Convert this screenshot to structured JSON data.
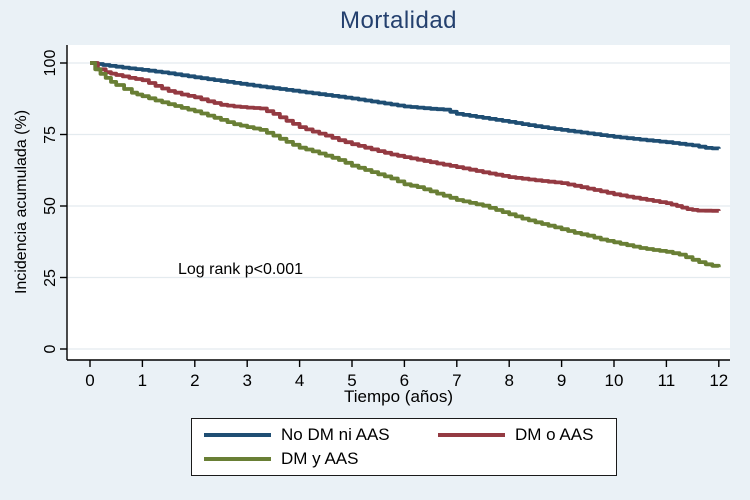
{
  "colors": {
    "background": "#eaf1f6",
    "plot_background": "#ffffff",
    "grid": "#e4ebef",
    "axis": "#000000",
    "title": "#24406e",
    "legend_border": "#1a1a1a",
    "series_blue": "#1f4e73",
    "series_red": "#943a42",
    "series_green": "#697f35"
  },
  "chart_data": {
    "type": "line",
    "subtype": "kaplan-meier-step",
    "title": "Mortalidad",
    "xlabel": "Tiempo (años)",
    "ylabel": "Incidencia acumulada (%)",
    "annotation": "Log rank p<0.001",
    "xlim": [
      0,
      12
    ],
    "ylim": [
      0,
      100
    ],
    "xticks": [
      0,
      1,
      2,
      3,
      4,
      5,
      6,
      7,
      8,
      9,
      10,
      11,
      12
    ],
    "yticks": [
      0,
      25,
      50,
      75,
      100
    ],
    "grid": true,
    "legend_position": "bottom",
    "series": [
      {
        "name": "No DM ni AAS",
        "color": "#1f4e73",
        "points": [
          [
            0,
            100
          ],
          [
            0.25,
            99.3
          ],
          [
            0.5,
            98.7
          ],
          [
            0.75,
            98.1
          ],
          [
            1,
            97.6
          ],
          [
            1.25,
            97
          ],
          [
            1.5,
            96.4
          ],
          [
            1.75,
            95.7
          ],
          [
            2,
            95
          ],
          [
            2.5,
            93.7
          ],
          [
            3,
            92.4
          ],
          [
            3.5,
            91.2
          ],
          [
            4,
            90
          ],
          [
            4.5,
            88.8
          ],
          [
            5,
            87.6
          ],
          [
            5.5,
            86.2
          ],
          [
            6,
            84.8
          ],
          [
            6.5,
            84
          ],
          [
            6.75,
            83.7
          ],
          [
            7,
            82.2
          ],
          [
            7.5,
            80.8
          ],
          [
            8,
            79.4
          ],
          [
            8.5,
            77.9
          ],
          [
            9,
            76.6
          ],
          [
            9.5,
            75.4
          ],
          [
            10,
            74.2
          ],
          [
            10.5,
            73.2
          ],
          [
            11,
            72.3
          ],
          [
            11.5,
            71.2
          ],
          [
            11.75,
            70.3
          ],
          [
            12,
            70
          ]
        ]
      },
      {
        "name": "DM o AAS",
        "color": "#943a42",
        "points": [
          [
            0,
            100
          ],
          [
            0.15,
            97.8
          ],
          [
            0.3,
            96.8
          ],
          [
            0.5,
            95.8
          ],
          [
            0.75,
            94.8
          ],
          [
            1,
            94
          ],
          [
            1.25,
            92
          ],
          [
            1.5,
            90.2
          ],
          [
            1.75,
            89
          ],
          [
            2,
            88
          ],
          [
            2.25,
            86.6
          ],
          [
            2.5,
            85.4
          ],
          [
            2.75,
            84.8
          ],
          [
            3,
            84.4
          ],
          [
            3.25,
            84.1
          ],
          [
            3.5,
            82.2
          ],
          [
            3.75,
            79.8
          ],
          [
            4,
            77.6
          ],
          [
            4.25,
            76
          ],
          [
            4.5,
            74.6
          ],
          [
            4.75,
            73
          ],
          [
            5,
            71.6
          ],
          [
            5.25,
            70.4
          ],
          [
            5.5,
            69.2
          ],
          [
            5.75,
            68
          ],
          [
            6,
            67.1
          ],
          [
            6.5,
            65.3
          ],
          [
            7,
            63.6
          ],
          [
            7.5,
            61.8
          ],
          [
            8,
            60.1
          ],
          [
            8.5,
            59
          ],
          [
            9,
            58
          ],
          [
            9.5,
            56.1
          ],
          [
            10,
            54.1
          ],
          [
            10.5,
            52.5
          ],
          [
            11,
            51
          ],
          [
            11.2,
            50
          ],
          [
            11.4,
            48.9
          ],
          [
            11.6,
            48.4
          ],
          [
            12,
            48.3
          ]
        ]
      },
      {
        "name": "DM y AAS",
        "color": "#697f35",
        "points": [
          [
            0,
            100
          ],
          [
            0.1,
            97.8
          ],
          [
            0.2,
            96.2
          ],
          [
            0.3,
            94.8
          ],
          [
            0.4,
            93.4
          ],
          [
            0.5,
            92.3
          ],
          [
            0.65,
            90.9
          ],
          [
            0.8,
            89.6
          ],
          [
            1,
            88.4
          ],
          [
            1.25,
            86.9
          ],
          [
            1.5,
            85.6
          ],
          [
            1.75,
            84.3
          ],
          [
            2,
            83.1
          ],
          [
            2.25,
            81.6
          ],
          [
            2.5,
            80.1
          ],
          [
            2.75,
            78.6
          ],
          [
            3,
            77.6
          ],
          [
            3.25,
            76.6
          ],
          [
            3.5,
            74.6
          ],
          [
            3.75,
            72.4
          ],
          [
            4,
            70.4
          ],
          [
            4.25,
            69.1
          ],
          [
            4.5,
            67.6
          ],
          [
            4.75,
            66.1
          ],
          [
            5,
            64.1
          ],
          [
            5.25,
            62.6
          ],
          [
            5.5,
            61.1
          ],
          [
            5.75,
            59.6
          ],
          [
            6,
            57.6
          ],
          [
            6.25,
            56.6
          ],
          [
            6.5,
            55.1
          ],
          [
            6.75,
            53.6
          ],
          [
            7,
            52.1
          ],
          [
            7.25,
            51.1
          ],
          [
            7.5,
            50.1
          ],
          [
            7.75,
            48.6
          ],
          [
            8,
            47.1
          ],
          [
            8.25,
            45.6
          ],
          [
            8.5,
            44.3
          ],
          [
            8.75,
            43.1
          ],
          [
            9,
            41.9
          ],
          [
            9.25,
            40.6
          ],
          [
            9.5,
            39.6
          ],
          [
            9.75,
            38.3
          ],
          [
            10,
            37.3
          ],
          [
            10.25,
            36.3
          ],
          [
            10.5,
            35.3
          ],
          [
            10.75,
            34.6
          ],
          [
            11,
            34
          ],
          [
            11.25,
            33
          ],
          [
            11.5,
            31.2
          ],
          [
            11.75,
            29.6
          ],
          [
            12,
            28.6
          ]
        ]
      }
    ]
  }
}
